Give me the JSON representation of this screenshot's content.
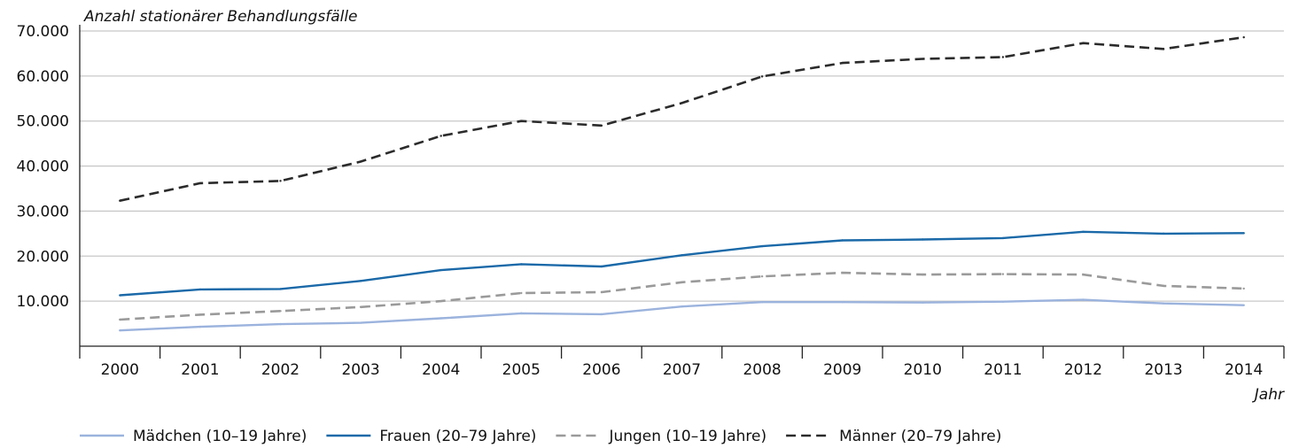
{
  "chart_data": {
    "type": "line",
    "title": "",
    "ylabel": "Anzahl stationärer Behandlungsfälle",
    "xlabel": "Jahr",
    "x": [
      2000,
      2001,
      2002,
      2003,
      2004,
      2005,
      2006,
      2007,
      2008,
      2009,
      2010,
      2011,
      2012,
      2013,
      2014
    ],
    "x_tick_labels": [
      "2000",
      "2001",
      "2002",
      "2003",
      "2004",
      "2005",
      "2006",
      "2007",
      "2008",
      "2009",
      "2010",
      "2011",
      "2012",
      "2013",
      "2014"
    ],
    "ylim": [
      0,
      70000
    ],
    "y_ticks": [
      10000,
      20000,
      30000,
      40000,
      50000,
      60000,
      70000
    ],
    "y_tick_labels": [
      "10.000",
      "20.000",
      "30.000",
      "40.000",
      "50.000",
      "60.000",
      "70.000"
    ],
    "grid": "horizontal",
    "legend_position": "bottom",
    "series": [
      {
        "name": "Mädchen (10–19 Jahre)",
        "color": "#9bb3dd",
        "dash": "solid",
        "values": [
          3500,
          4300,
          4900,
          5200,
          6200,
          7300,
          7100,
          8800,
          9800,
          9800,
          9700,
          9900,
          10300,
          9500,
          9100
        ]
      },
      {
        "name": "Frauen (20–79 Jahre)",
        "color": "#1a69a8",
        "dash": "solid",
        "values": [
          11300,
          12600,
          12700,
          14500,
          16900,
          18200,
          17700,
          20200,
          22200,
          23500,
          23700,
          24000,
          25400,
          25000,
          25100
        ]
      },
      {
        "name": "Jungen (10–19 Jahre)",
        "color": "#9a9a9a",
        "dash": "dashed",
        "values": [
          5900,
          7000,
          7800,
          8700,
          10000,
          11800,
          12000,
          14200,
          15500,
          16300,
          15900,
          16000,
          15900,
          13400,
          12800
        ]
      },
      {
        "name": "Männer (20–79 Jahre)",
        "color": "#2b2b2b",
        "dash": "dashed",
        "values": [
          32300,
          36200,
          36700,
          41000,
          46700,
          50000,
          49000,
          54000,
          59900,
          62900,
          63800,
          64200,
          67300,
          66000,
          68600
        ]
      }
    ]
  }
}
